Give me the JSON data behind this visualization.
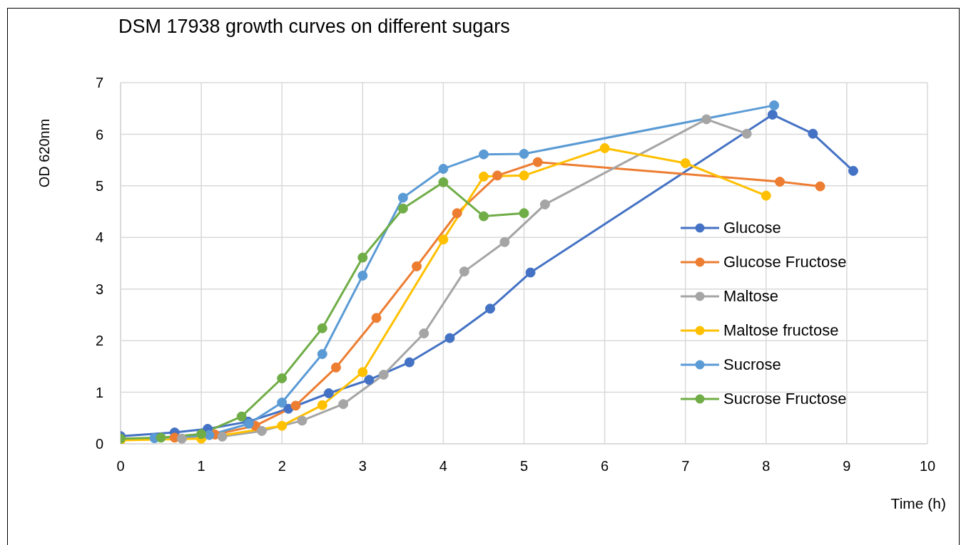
{
  "chart_data": {
    "type": "line",
    "title": "DSM 17938 growth curves on different sugars",
    "xlabel": "Time (h)",
    "ylabel": "OD 620nm",
    "xlim": [
      0,
      10
    ],
    "xticks": [
      0,
      1,
      2,
      3,
      4,
      5,
      6,
      7,
      8,
      9,
      10
    ],
    "ylim": [
      0,
      7
    ],
    "yticks": [
      0,
      1,
      2,
      3,
      4,
      5,
      6,
      7
    ],
    "grid": true,
    "legend": "right",
    "marker": "circle",
    "line_style": "solid",
    "series": [
      {
        "name": "Glucose",
        "color": "#4472c4",
        "x": [
          0,
          0.67,
          1.08,
          1.58,
          2.08,
          2.58,
          3.08,
          3.58,
          4.08,
          4.58,
          5.08,
          8.08,
          8.58,
          9.08
        ],
        "values": [
          0.15,
          0.22,
          0.29,
          0.43,
          0.68,
          0.98,
          1.24,
          1.58,
          2.05,
          2.62,
          3.32,
          6.38,
          6.01,
          5.29
        ]
      },
      {
        "name": "Glucose Fructose",
        "color": "#ed7d31",
        "x": [
          0.67,
          1.17,
          1.67,
          2.17,
          2.67,
          3.17,
          3.67,
          4.17,
          4.67,
          5.17,
          8.17,
          8.67
        ],
        "values": [
          0.12,
          0.18,
          0.35,
          0.74,
          1.48,
          2.44,
          3.44,
          4.47,
          5.2,
          5.46,
          5.08,
          4.99
        ]
      },
      {
        "name": "Maltose",
        "color": "#a5a5a5",
        "x": [
          0.76,
          1.26,
          1.75,
          2.25,
          2.76,
          3.26,
          3.76,
          4.26,
          4.76,
          5.26,
          7.26,
          7.76
        ],
        "values": [
          0.1,
          0.14,
          0.25,
          0.45,
          0.77,
          1.34,
          2.14,
          3.34,
          3.91,
          4.64,
          6.29,
          6.01
        ]
      },
      {
        "name": "Maltose fructose",
        "color": "#ffc000",
        "x": [
          0,
          1,
          2,
          2.5,
          3,
          4,
          4.5,
          5,
          6,
          7,
          8
        ],
        "values": [
          0.07,
          0.1,
          0.35,
          0.75,
          1.39,
          3.96,
          5.18,
          5.2,
          5.73,
          5.44,
          4.81
        ]
      },
      {
        "name": "Sucrose",
        "color": "#5b9bd5",
        "x": [
          0.42,
          1.1,
          1.59,
          2,
          2.5,
          3,
          3.5,
          4,
          4.5,
          5,
          8.1
        ],
        "values": [
          0.11,
          0.17,
          0.39,
          0.8,
          1.74,
          3.26,
          4.77,
          5.33,
          5.61,
          5.62,
          6.56
        ]
      },
      {
        "name": "Sucrose Fructose",
        "color": "#70ad47",
        "x": [
          0,
          0.5,
          1,
          1.5,
          2,
          2.5,
          3,
          3.5,
          4,
          4.5,
          5
        ],
        "values": [
          0.1,
          0.12,
          0.19,
          0.53,
          1.27,
          2.24,
          3.61,
          4.56,
          5.07,
          4.41,
          4.47
        ]
      }
    ]
  }
}
